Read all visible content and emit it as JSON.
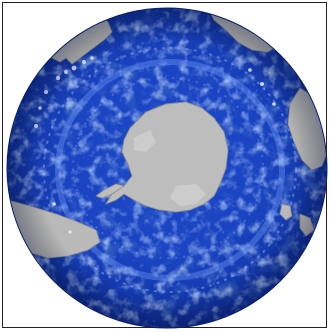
{
  "image": {
    "colors": {
      "ocean_deep": "#0a2fa8",
      "ocean_mid": "#1e50d8",
      "ocean_light": "#5b8cf2",
      "current_highlight": "#dbe8ff",
      "land": "#b9b9b9",
      "land_shadow": "#8f8f8f",
      "background": "#ffffff",
      "frame": "#222222"
    }
  }
}
